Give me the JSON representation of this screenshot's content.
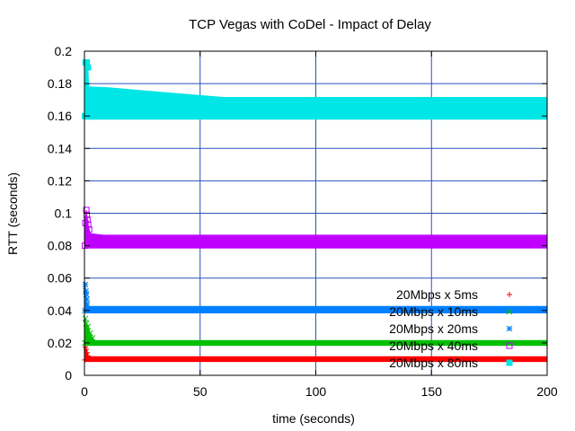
{
  "chart_data": {
    "type": "scatter",
    "title": "TCP Vegas with CoDel - Impact of Delay",
    "xlabel": "time (seconds)",
    "ylabel": "RTT (seconds)",
    "xlim": [
      0,
      200
    ],
    "ylim": [
      0,
      0.2
    ],
    "xticks": [
      0,
      50,
      100,
      150,
      200
    ],
    "xtick_labels": [
      "0",
      "50",
      "100",
      "150",
      "200"
    ],
    "yticks": [
      0,
      0.02,
      0.04,
      0.06,
      0.08,
      0.1,
      0.12,
      0.14,
      0.16,
      0.18,
      0.2
    ],
    "ytick_labels": [
      "0",
      "0.02",
      "0.04",
      "0.06",
      "0.08",
      "0.1",
      "0.12",
      "0.14",
      "0.16",
      "0.18",
      "0.2"
    ],
    "grid": true,
    "legend_position": "bottom-right",
    "series": [
      {
        "name": "20Mbps x 5ms",
        "color": "#ff0000",
        "marker": "plus",
        "spike": [
          [
            0.2,
            0.0095
          ],
          [
            0.4,
            0.0175
          ],
          [
            0.8,
            0.016
          ],
          [
            1.2,
            0.014
          ],
          [
            1.6,
            0.012
          ]
        ],
        "band": [
          [
            2,
            0.0085,
            0.0115
          ],
          [
            200,
            0.0085,
            0.0115
          ]
        ]
      },
      {
        "name": "20Mbps x 10ms",
        "color": "#00c000",
        "marker": "cross",
        "spike": [
          [
            0.2,
            0.02
          ],
          [
            0.4,
            0.035
          ],
          [
            0.8,
            0.032
          ],
          [
            1.5,
            0.03
          ],
          [
            2.5,
            0.026
          ],
          [
            3.5,
            0.023
          ]
        ],
        "band": [
          [
            4,
            0.0185,
            0.0215
          ],
          [
            200,
            0.0185,
            0.0215
          ]
        ]
      },
      {
        "name": "20Mbps x 20ms",
        "color": "#0080ff",
        "marker": "star",
        "spike": [
          [
            0.2,
            0.04
          ],
          [
            0.4,
            0.056
          ],
          [
            0.6,
            0.052
          ],
          [
            0.8,
            0.05
          ],
          [
            1.0,
            0.047
          ],
          [
            1.2,
            0.044
          ]
        ],
        "band": [
          [
            1.5,
            0.0385,
            0.0425
          ],
          [
            200,
            0.0385,
            0.0425
          ]
        ]
      },
      {
        "name": "20Mbps x 40ms",
        "color": "#c000ff",
        "marker": "box",
        "spike": [
          [
            0.2,
            0.08
          ],
          [
            0.4,
            0.094
          ],
          [
            0.8,
            0.102
          ],
          [
            1.0,
            0.099
          ],
          [
            1.3,
            0.096
          ],
          [
            1.6,
            0.093
          ],
          [
            2.0,
            0.09
          ]
        ],
        "band": [
          [
            2.5,
            0.0785,
            0.0875
          ],
          [
            8,
            0.0785,
            0.0865
          ],
          [
            200,
            0.0785,
            0.0865
          ]
        ]
      },
      {
        "name": "20Mbps x 80ms",
        "color": "#00e5e5",
        "marker": "filled-box",
        "spike": [
          [
            0.2,
            0.16
          ],
          [
            0.5,
            0.193
          ],
          [
            1.0,
            0.193
          ],
          [
            1.5,
            0.19
          ]
        ],
        "band": [
          [
            1.8,
            0.158,
            0.178
          ],
          [
            10,
            0.158,
            0.1775
          ],
          [
            30,
            0.158,
            0.175
          ],
          [
            60,
            0.158,
            0.1715
          ],
          [
            200,
            0.158,
            0.1715
          ]
        ]
      }
    ]
  }
}
